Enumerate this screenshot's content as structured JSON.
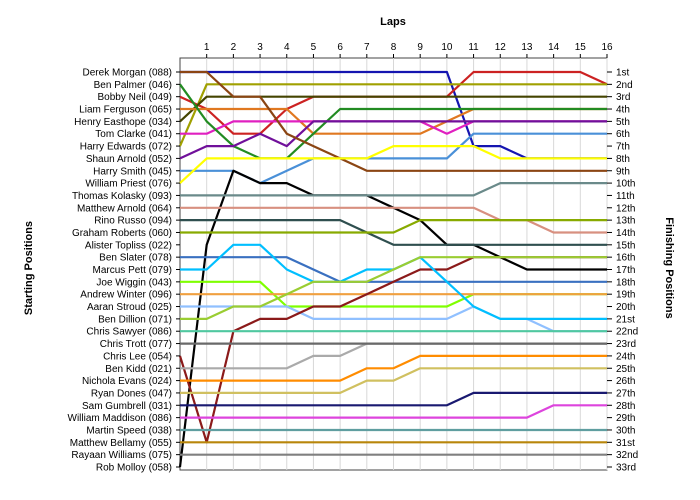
{
  "chart_data": {
    "type": "line",
    "xlabel": "Laps",
    "ylabel_left": "Starting Positions",
    "ylabel_right": "Finishing Positions",
    "laps": [
      1,
      2,
      3,
      4,
      5,
      6,
      7,
      8,
      9,
      10,
      11,
      12,
      13,
      14,
      15,
      16
    ],
    "xlim": [
      0,
      16
    ],
    "ylim": [
      1,
      33
    ],
    "grid": "vertical",
    "drivers": [
      "Derek Morgan (088)",
      "Ben Palmer (046)",
      "Bobby Neil (049)",
      "Liam Ferguson (065)",
      "Henry Easthope (034)",
      "Tom Clarke (041)",
      "Harry Edwards (072)",
      "Shaun Arnold (052)",
      "Harry Smith (045)",
      "William Priest (076)",
      "Thomas Kolasky (093)",
      "Matthew Arnold (064)",
      "Rino Russo (094)",
      "Graham Roberts (060)",
      "Alister Topliss (022)",
      "Ben Slater (078)",
      "Marcus Pett (079)",
      "Joe Wiggin (043)",
      "Andrew Winter (096)",
      "Aaran Stroud (025)",
      "Ben Dillion (071)",
      "Chris Sawyer (086)",
      "Chris Trott (077)",
      "Chris Lee (054)",
      "Ben Kidd (021)",
      "Nichola Evans (024)",
      "Ryan Dones (047)",
      "Sam Gumbrell (031)",
      "William Maddison (086)",
      "Martin Speed (038)",
      "Matthew Bellamy (055)",
      "Rayaan Williams (075)",
      "Rob Molloy (058)"
    ],
    "finishing_labels": [
      "1st",
      "2nd",
      "3rd",
      "4th",
      "5th",
      "6th",
      "7th",
      "8th",
      "9th",
      "10th",
      "11th",
      "12th",
      "13th",
      "14th",
      "15th",
      "16th",
      "17th",
      "18th",
      "19th",
      "20th",
      "21st",
      "22nd",
      "23rd",
      "24th",
      "25th",
      "26th",
      "27th",
      "28th",
      "29th",
      "30th",
      "31st",
      "32nd",
      "33rd"
    ],
    "series": [
      {
        "color": "#1515b0",
        "values": [
          0,
          1,
          1,
          1,
          1,
          1,
          1,
          1,
          1,
          1,
          1,
          7,
          7,
          8,
          8,
          8,
          8
        ]
      },
      {
        "color": "#cc2222",
        "values": [
          3,
          4,
          6,
          6,
          4,
          3,
          3,
          3,
          3,
          3,
          3,
          1,
          1,
          1,
          1,
          1,
          2
        ]
      },
      {
        "color": "#a0a000",
        "values": [
          7,
          2,
          2,
          2,
          2,
          2,
          2,
          2,
          2,
          2,
          2,
          2,
          2,
          2,
          2,
          2,
          2
        ]
      },
      {
        "color": "#444400",
        "values": [
          5,
          3,
          3,
          3,
          3,
          3,
          3,
          3,
          3,
          3,
          3,
          3,
          3,
          3,
          3,
          3,
          3
        ]
      },
      {
        "color": "#e07820",
        "values": [
          4,
          4,
          4,
          4,
          4,
          6,
          6,
          6,
          6,
          6,
          5,
          4,
          4,
          4,
          4,
          4,
          4
        ]
      },
      {
        "color": "#e020c0",
        "values": [
          6,
          6,
          5,
          5,
          5,
          5,
          5,
          5,
          5,
          5,
          6,
          5,
          5,
          5,
          5,
          5,
          5
        ]
      },
      {
        "color": "#228b22",
        "values": [
          2,
          5,
          7,
          8,
          8,
          6,
          4,
          4,
          4,
          4,
          4,
          4,
          4,
          4,
          4,
          4,
          4
        ]
      },
      {
        "color": "#4a90d8",
        "values": [
          9,
          9,
          9,
          10,
          9,
          8,
          8,
          8,
          8,
          8,
          8,
          6,
          6,
          6,
          6,
          6,
          6
        ]
      },
      {
        "color": "#70109a",
        "values": [
          8,
          7,
          7,
          6,
          7,
          5,
          5,
          5,
          5,
          5,
          5,
          5,
          5,
          5,
          5,
          5,
          5
        ]
      },
      {
        "color": "#8b4513",
        "values": [
          1,
          1,
          3,
          3,
          6,
          7,
          8,
          9,
          9,
          9,
          9,
          9,
          9,
          9,
          9,
          9,
          9
        ]
      },
      {
        "color": "#ffff00",
        "values": [
          10,
          8,
          8,
          8,
          8,
          8,
          8,
          8,
          7,
          7,
          7,
          7,
          8,
          8,
          8,
          8,
          8
        ]
      },
      {
        "color": "#000000",
        "values": [
          33,
          15,
          9,
          10,
          10,
          11,
          11,
          11,
          12,
          13,
          15,
          15,
          16,
          17,
          17,
          17,
          17
        ]
      },
      {
        "color": "#6a8a8a",
        "values": [
          11,
          11,
          11,
          11,
          11,
          11,
          11,
          11,
          11,
          11,
          11,
          11,
          10,
          10,
          10,
          10,
          10
        ]
      },
      {
        "color": "#d89080",
        "values": [
          12,
          12,
          12,
          12,
          12,
          12,
          12,
          12,
          12,
          12,
          12,
          12,
          13,
          13,
          14,
          14,
          14
        ]
      },
      {
        "color": "#2f4f4f",
        "values": [
          13,
          13,
          13,
          13,
          13,
          13,
          13,
          14,
          15,
          15,
          15,
          15,
          15,
          15,
          15,
          15,
          15
        ]
      },
      {
        "color": "#88aa00",
        "values": [
          14,
          14,
          14,
          14,
          14,
          14,
          14,
          14,
          14,
          13,
          13,
          13,
          13,
          13,
          13,
          13,
          13
        ]
      },
      {
        "color": "#3a70c0",
        "values": [
          16,
          16,
          16,
          16,
          16,
          17,
          18,
          18,
          18,
          18,
          18,
          18,
          18,
          18,
          18,
          18,
          18
        ]
      },
      {
        "color": "#7fff00",
        "values": [
          18,
          18,
          18,
          18,
          20,
          20,
          20,
          20,
          20,
          20,
          20,
          19,
          19,
          19,
          19,
          19,
          19
        ]
      },
      {
        "color": "#f0a040",
        "values": [
          19,
          19,
          19,
          19,
          19,
          19,
          19,
          19,
          19,
          19,
          19,
          19,
          19,
          19,
          19,
          19,
          19
        ]
      },
      {
        "color": "#90c0ff",
        "values": [
          20,
          20,
          20,
          20,
          20,
          21,
          21,
          21,
          21,
          21,
          21,
          20,
          21,
          21,
          22,
          22,
          22
        ]
      },
      {
        "color": "#8b1a1a",
        "values": [
          24,
          31,
          22,
          21,
          21,
          20,
          20,
          19,
          18,
          17,
          17,
          16,
          16,
          16,
          16,
          16,
          16
        ]
      },
      {
        "color": "#50c8a0",
        "values": [
          22,
          22,
          22,
          22,
          22,
          22,
          22,
          22,
          22,
          22,
          22,
          22,
          22,
          22,
          22,
          22,
          22
        ]
      },
      {
        "color": "#aaaaaa",
        "values": [
          25,
          25,
          25,
          25,
          25,
          24,
          24,
          23,
          23,
          23,
          23,
          23,
          23,
          23,
          23,
          23,
          23
        ]
      },
      {
        "color": "#ff8c00",
        "values": [
          26,
          26,
          26,
          26,
          26,
          26,
          26,
          25,
          25,
          24,
          24,
          24,
          24,
          24,
          24,
          24,
          24
        ]
      },
      {
        "color": "#d0c060",
        "values": [
          27,
          27,
          27,
          27,
          27,
          27,
          27,
          26,
          26,
          25,
          25,
          25,
          25,
          25,
          25,
          25,
          25
        ]
      },
      {
        "color": "#191970",
        "values": [
          28,
          28,
          28,
          28,
          28,
          28,
          28,
          28,
          28,
          28,
          28,
          27,
          27,
          27,
          27,
          27,
          27
        ]
      },
      {
        "color": "#dd44dd",
        "values": [
          29,
          29,
          29,
          29,
          29,
          29,
          29,
          29,
          29,
          29,
          29,
          29,
          29,
          29,
          28,
          28,
          28
        ]
      },
      {
        "color": "#5f9ea0",
        "values": [
          30,
          30,
          30,
          30,
          30,
          30,
          30,
          30,
          30,
          30,
          30,
          30,
          30,
          30,
          30,
          30,
          30
        ]
      },
      {
        "color": "#b8860b",
        "values": [
          31,
          31,
          31,
          31,
          31,
          31,
          31,
          31,
          31,
          31,
          31,
          31,
          31,
          31,
          31,
          31,
          31
        ]
      },
      {
        "color": "#808080",
        "values": [
          32,
          32,
          32,
          32,
          32,
          32,
          32,
          32,
          32,
          32,
          32,
          32,
          32,
          32,
          32,
          32,
          32
        ]
      },
      {
        "color": "#00bfff",
        "values": [
          17,
          17,
          15,
          15,
          17,
          18,
          18,
          17,
          17,
          16,
          18,
          20,
          21,
          21,
          21,
          21,
          21
        ]
      },
      {
        "color": "#9acd32",
        "values": [
          21,
          21,
          20,
          20,
          19,
          18,
          18,
          18,
          17,
          16,
          16,
          16,
          16,
          16,
          16,
          16,
          16
        ]
      },
      {
        "color": "#696969",
        "values": [
          23,
          23,
          23,
          23,
          23,
          23,
          23,
          23,
          23,
          23,
          23,
          23,
          23,
          23,
          23,
          23,
          23
        ]
      }
    ]
  }
}
